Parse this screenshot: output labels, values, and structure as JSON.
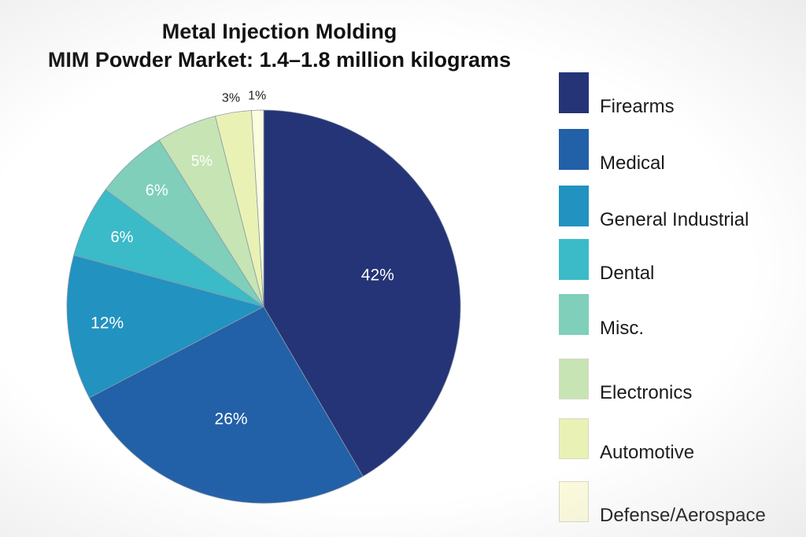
{
  "chart_data": {
    "type": "pie",
    "title": "Metal Injection Molding",
    "subtitle": "MIM Powder Market: 1.4–1.8 million kilograms",
    "categories": [
      "Firearms",
      "Medical",
      "General Industrial",
      "Dental",
      "Misc.",
      "Electronics",
      "Automotive",
      "Defense/Aerospace"
    ],
    "values": [
      42,
      26,
      12,
      6,
      6,
      5,
      3,
      1
    ],
    "data_labels": [
      "42%",
      "26%",
      "12%",
      "6%",
      "6%",
      "5%",
      "3%",
      "1%"
    ],
    "colors": [
      "#253477",
      "#2260a8",
      "#2292c0",
      "#3bbac8",
      "#7fcfbb",
      "#c6e4b4",
      "#e9f2b4",
      "#fcfbdd"
    ],
    "legend_position": "right"
  }
}
